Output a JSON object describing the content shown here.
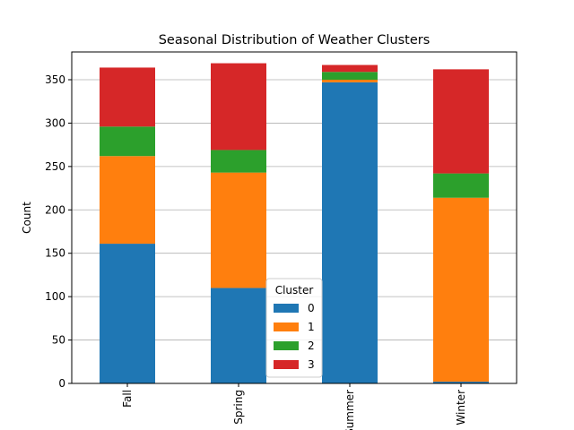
{
  "chart_data": {
    "type": "bar",
    "stacked": true,
    "title": "Seasonal Distribution of Weather Clusters",
    "xlabel": "",
    "ylabel": "Count",
    "ylim": [
      0,
      382
    ],
    "yticks": [
      0,
      50,
      100,
      150,
      200,
      250,
      300,
      350
    ],
    "grid": "y",
    "categories": [
      "Fall",
      "Spring",
      "Summer",
      "Winter"
    ],
    "series": [
      {
        "name": "0",
        "color": "#1f77b4",
        "values": [
          161,
          110,
          347,
          2
        ]
      },
      {
        "name": "1",
        "color": "#ff7f0e",
        "values": [
          101,
          133,
          3,
          212
        ]
      },
      {
        "name": "2",
        "color": "#2ca02c",
        "values": [
          34,
          26,
          9,
          28
        ]
      },
      {
        "name": "3",
        "color": "#d62728",
        "values": [
          68,
          100,
          8,
          120
        ]
      }
    ],
    "legend": {
      "title": "Cluster",
      "placement": "lower-center"
    }
  }
}
